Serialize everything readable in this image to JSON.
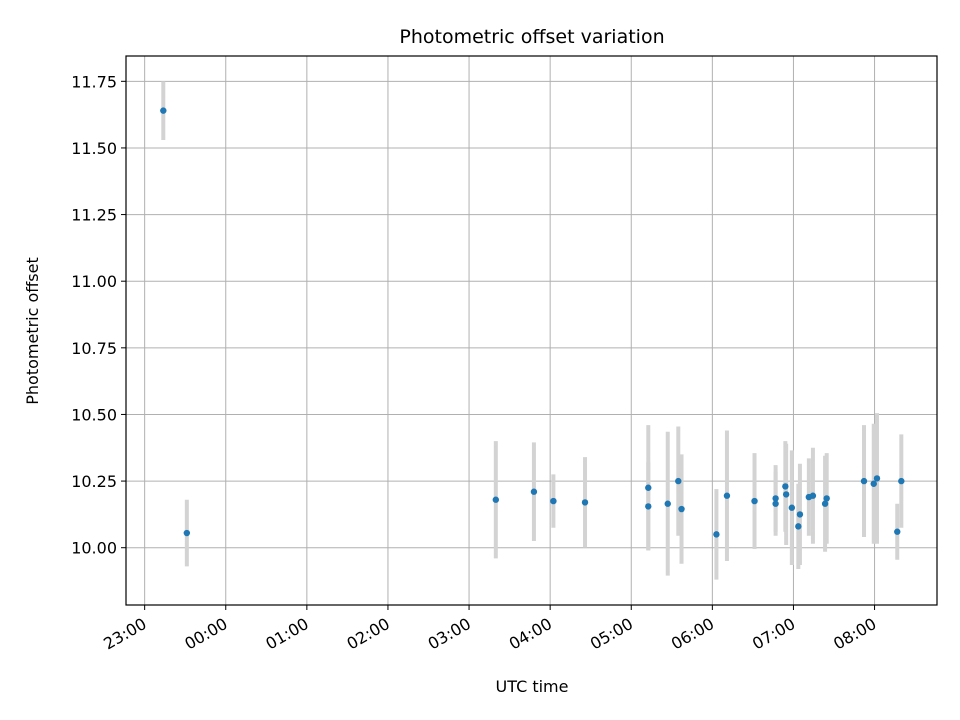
{
  "chart_data": {
    "type": "scatter",
    "title": "Photometric offset variation",
    "xlabel": "UTC time",
    "ylabel": "Photometric offset",
    "x_unit": "hours",
    "xlim": [
      -1.23,
      8.77
    ],
    "ylim": [
      9.785,
      11.845
    ],
    "x_tick_values": [
      -1,
      0,
      1,
      2,
      3,
      4,
      5,
      6,
      7,
      8
    ],
    "x_tick_labels": [
      "23:00",
      "00:00",
      "01:00",
      "02:00",
      "03:00",
      "04:00",
      "05:00",
      "06:00",
      "07:00",
      "08:00"
    ],
    "y_tick_values": [
      10.0,
      10.25,
      10.5,
      10.75,
      11.0,
      11.25,
      11.5,
      11.75
    ],
    "y_tick_labels": [
      "10.00",
      "10.25",
      "10.50",
      "10.75",
      "11.00",
      "11.25",
      "11.50",
      "11.75"
    ],
    "grid": true,
    "legend": "none",
    "colors": {
      "point": "#1f77b4",
      "errorbar": "#d3d3d3",
      "grid": "#b0b0b0",
      "axes": "#000000"
    },
    "points": [
      {
        "x": -0.77,
        "y": 11.64,
        "err": 0.11
      },
      {
        "x": -0.48,
        "y": 10.055,
        "err": 0.125
      },
      {
        "x": 3.33,
        "y": 10.18,
        "err": 0.22
      },
      {
        "x": 3.8,
        "y": 10.21,
        "err": 0.185
      },
      {
        "x": 4.04,
        "y": 10.175,
        "err": 0.1
      },
      {
        "x": 4.43,
        "y": 10.17,
        "err": 0.17
      },
      {
        "x": 5.21,
        "y": 10.225,
        "err": 0.235
      },
      {
        "x": 5.21,
        "y": 10.155,
        "err": 0.165
      },
      {
        "x": 5.45,
        "y": 10.165,
        "err": 0.27
      },
      {
        "x": 5.58,
        "y": 10.25,
        "err": 0.205
      },
      {
        "x": 5.62,
        "y": 10.145,
        "err": 0.205
      },
      {
        "x": 6.05,
        "y": 10.05,
        "err": 0.17
      },
      {
        "x": 6.18,
        "y": 10.195,
        "err": 0.245
      },
      {
        "x": 6.52,
        "y": 10.175,
        "err": 0.18
      },
      {
        "x": 6.78,
        "y": 10.185,
        "err": 0.125
      },
      {
        "x": 6.78,
        "y": 10.165,
        "err": 0.12
      },
      {
        "x": 6.9,
        "y": 10.23,
        "err": 0.17
      },
      {
        "x": 6.91,
        "y": 10.2,
        "err": 0.19
      },
      {
        "x": 6.98,
        "y": 10.15,
        "err": 0.215
      },
      {
        "x": 7.06,
        "y": 10.08,
        "err": 0.16
      },
      {
        "x": 7.08,
        "y": 10.125,
        "err": 0.19
      },
      {
        "x": 7.19,
        "y": 10.19,
        "err": 0.145
      },
      {
        "x": 7.24,
        "y": 10.195,
        "err": 0.18
      },
      {
        "x": 7.39,
        "y": 10.165,
        "err": 0.18
      },
      {
        "x": 7.41,
        "y": 10.185,
        "err": 0.17
      },
      {
        "x": 7.87,
        "y": 10.25,
        "err": 0.21
      },
      {
        "x": 7.99,
        "y": 10.24,
        "err": 0.225
      },
      {
        "x": 8.03,
        "y": 10.26,
        "err": 0.245
      },
      {
        "x": 8.28,
        "y": 10.06,
        "err": 0.105
      },
      {
        "x": 8.33,
        "y": 10.25,
        "err": 0.175
      }
    ]
  }
}
